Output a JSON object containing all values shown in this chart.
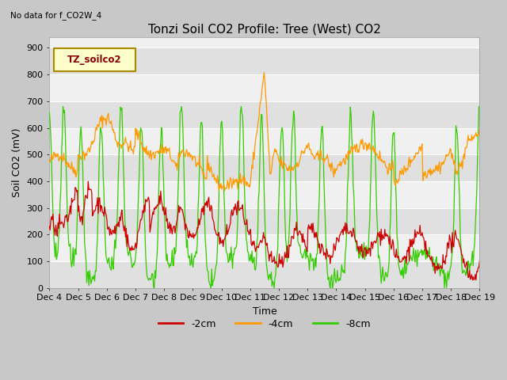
{
  "title": "Tonzi Soil CO2 Profile: Tree (West) CO2",
  "subtitle": "No data for f_CO2W_4",
  "ylabel": "Soil CO2 (mV)",
  "xlabel": "Time",
  "legend_label": "TZ_soilco2",
  "series_labels": [
    "-2cm",
    "-4cm",
    "-8cm"
  ],
  "series_colors": [
    "#cc0000",
    "#ff9900",
    "#33cc00"
  ],
  "ylim": [
    0,
    940
  ],
  "yticks": [
    0,
    100,
    200,
    300,
    400,
    500,
    600,
    700,
    800,
    900
  ],
  "xtick_labels": [
    "Dec 4",
    "Dec 5",
    "Dec 6",
    "Dec 7",
    "Dec 8",
    "Dec 9",
    "Dec 10",
    "Dec 11",
    "Dec 12",
    "Dec 13",
    "Dec 14",
    "Dec 15",
    "Dec 16",
    "Dec 17",
    "Dec 18",
    "Dec 19"
  ],
  "title_fontsize": 11,
  "axis_fontsize": 9,
  "tick_fontsize": 8,
  "legend_box_color": "#ffffcc",
  "legend_box_edge": "#aa8800",
  "band_light": "#f0f0f0",
  "band_dark": "#e0e0e0",
  "fig_bg": "#c8c8c8",
  "white_line": "#ffffff"
}
